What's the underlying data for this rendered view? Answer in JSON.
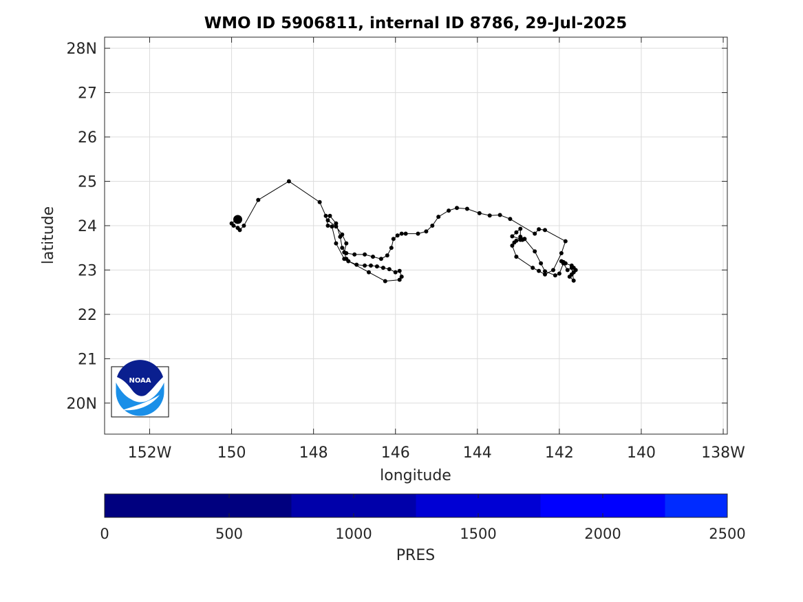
{
  "chart_data": {
    "type": "scatter",
    "title": "WMO ID 5906811, internal ID 8786, 29-Jul-2025",
    "xlabel": "longitude",
    "ylabel": "latitude",
    "xlim": [
      -153.1,
      -137.9
    ],
    "ylim": [
      19.3,
      28.25
    ],
    "x_ticks": [
      {
        "value": -152,
        "label": "152W"
      },
      {
        "value": -150,
        "label": "150"
      },
      {
        "value": -148,
        "label": "148"
      },
      {
        "value": -146,
        "label": "146"
      },
      {
        "value": -144,
        "label": "144"
      },
      {
        "value": -142,
        "label": "142"
      },
      {
        "value": -140,
        "label": "140"
      },
      {
        "value": -138,
        "label": "138W"
      }
    ],
    "y_ticks": [
      {
        "value": 20,
        "label": "20N"
      },
      {
        "value": 21,
        "label": "21"
      },
      {
        "value": 22,
        "label": "22"
      },
      {
        "value": 23,
        "label": "23"
      },
      {
        "value": 24,
        "label": "24"
      },
      {
        "value": 25,
        "label": "25"
      },
      {
        "value": 26,
        "label": "26"
      },
      {
        "value": 27,
        "label": "27"
      },
      {
        "value": 28,
        "label": "28N"
      }
    ],
    "grid": true,
    "track": {
      "lon": [
        -141.95,
        -141.9,
        -141.85,
        -141.7,
        -141.65,
        -141.6,
        -141.65,
        -141.7,
        -141.75,
        -141.65,
        -141.7,
        -141.8,
        -141.9,
        -142.0,
        -142.1,
        -142.35,
        -142.45,
        -142.6,
        -142.85,
        -142.95,
        -142.95,
        -143.05,
        -143.15,
        -142.95,
        -142.9,
        -142.85,
        -142.95,
        -143.05,
        -143.1,
        -143.15,
        -143.05,
        -142.65,
        -142.5,
        -142.35,
        -142.15,
        -141.95,
        -141.85,
        -142.35,
        -142.5,
        -142.6,
        -143.2,
        -143.45,
        -143.7,
        -143.95,
        -144.25,
        -144.5,
        -144.7,
        -144.95,
        -145.1,
        -145.25,
        -145.45,
        -145.75,
        -145.85,
        -145.95,
        -146.05,
        -146.1,
        -146.2,
        -146.35,
        -146.55,
        -146.75,
        -147.0,
        -147.2,
        -147.3,
        -147.35,
        -147.45,
        -147.6,
        -147.65,
        -147.45,
        -147.3,
        -147.2,
        -147.25,
        -147.2,
        -147.15,
        -146.95,
        -146.75,
        -146.6,
        -146.45,
        -146.3,
        -146.15,
        -146.0,
        -145.9,
        -145.85,
        -145.9,
        -146.25,
        -146.65,
        -147.25,
        -147.45,
        -147.55,
        -147.65,
        -147.7,
        -147.85,
        -148.6,
        -149.35,
        -149.7,
        -149.8,
        -149.85,
        -149.95,
        -150.0,
        -149.9,
        -149.85
      ],
      "lat": [
        23.2,
        23.18,
        23.15,
        23.1,
        23.05,
        23.0,
        22.95,
        22.9,
        22.85,
        22.76,
        23.05,
        23.0,
        23.15,
        22.92,
        22.88,
        22.97,
        23.15,
        23.42,
        23.7,
        23.75,
        23.93,
        23.85,
        23.76,
        23.7,
        23.68,
        23.7,
        23.68,
        23.66,
        23.62,
        23.55,
        23.3,
        23.05,
        22.98,
        22.9,
        23.0,
        23.38,
        23.65,
        23.9,
        23.92,
        23.82,
        24.15,
        24.24,
        24.23,
        24.28,
        24.38,
        24.4,
        24.34,
        24.2,
        24.0,
        23.87,
        23.82,
        23.82,
        23.82,
        23.78,
        23.7,
        23.5,
        23.33,
        23.25,
        23.3,
        23.35,
        23.35,
        23.38,
        23.5,
        23.75,
        24.05,
        24.22,
        24.12,
        23.98,
        23.8,
        23.6,
        23.4,
        23.25,
        23.2,
        23.12,
        23.1,
        23.1,
        23.08,
        23.05,
        23.02,
        22.95,
        22.98,
        22.85,
        22.78,
        22.75,
        22.95,
        23.25,
        23.6,
        23.98,
        24.0,
        24.22,
        24.53,
        25.0,
        24.58,
        24.0,
        23.9,
        23.95,
        24.0,
        24.05,
        24.12,
        24.14
      ],
      "highlight_index": 99
    },
    "colorbar": {
      "label": "PRES",
      "range": [
        0,
        2500
      ],
      "ticks": [
        0,
        500,
        1000,
        1500,
        2000,
        2500
      ],
      "bands": [
        {
          "from": 0,
          "to": 750,
          "color": "#00007f"
        },
        {
          "from": 750,
          "to": 1250,
          "color": "#0000aa"
        },
        {
          "from": 1250,
          "to": 1750,
          "color": "#0000d4"
        },
        {
          "from": 1750,
          "to": 2250,
          "color": "#0000ff"
        },
        {
          "from": 2250,
          "to": 2500,
          "color": "#002bff"
        }
      ]
    },
    "logo": {
      "text": "NOAA",
      "colors": {
        "navy": "#0a1f8f",
        "sky": "#1a8fe8",
        "white": "#ffffff"
      }
    }
  }
}
